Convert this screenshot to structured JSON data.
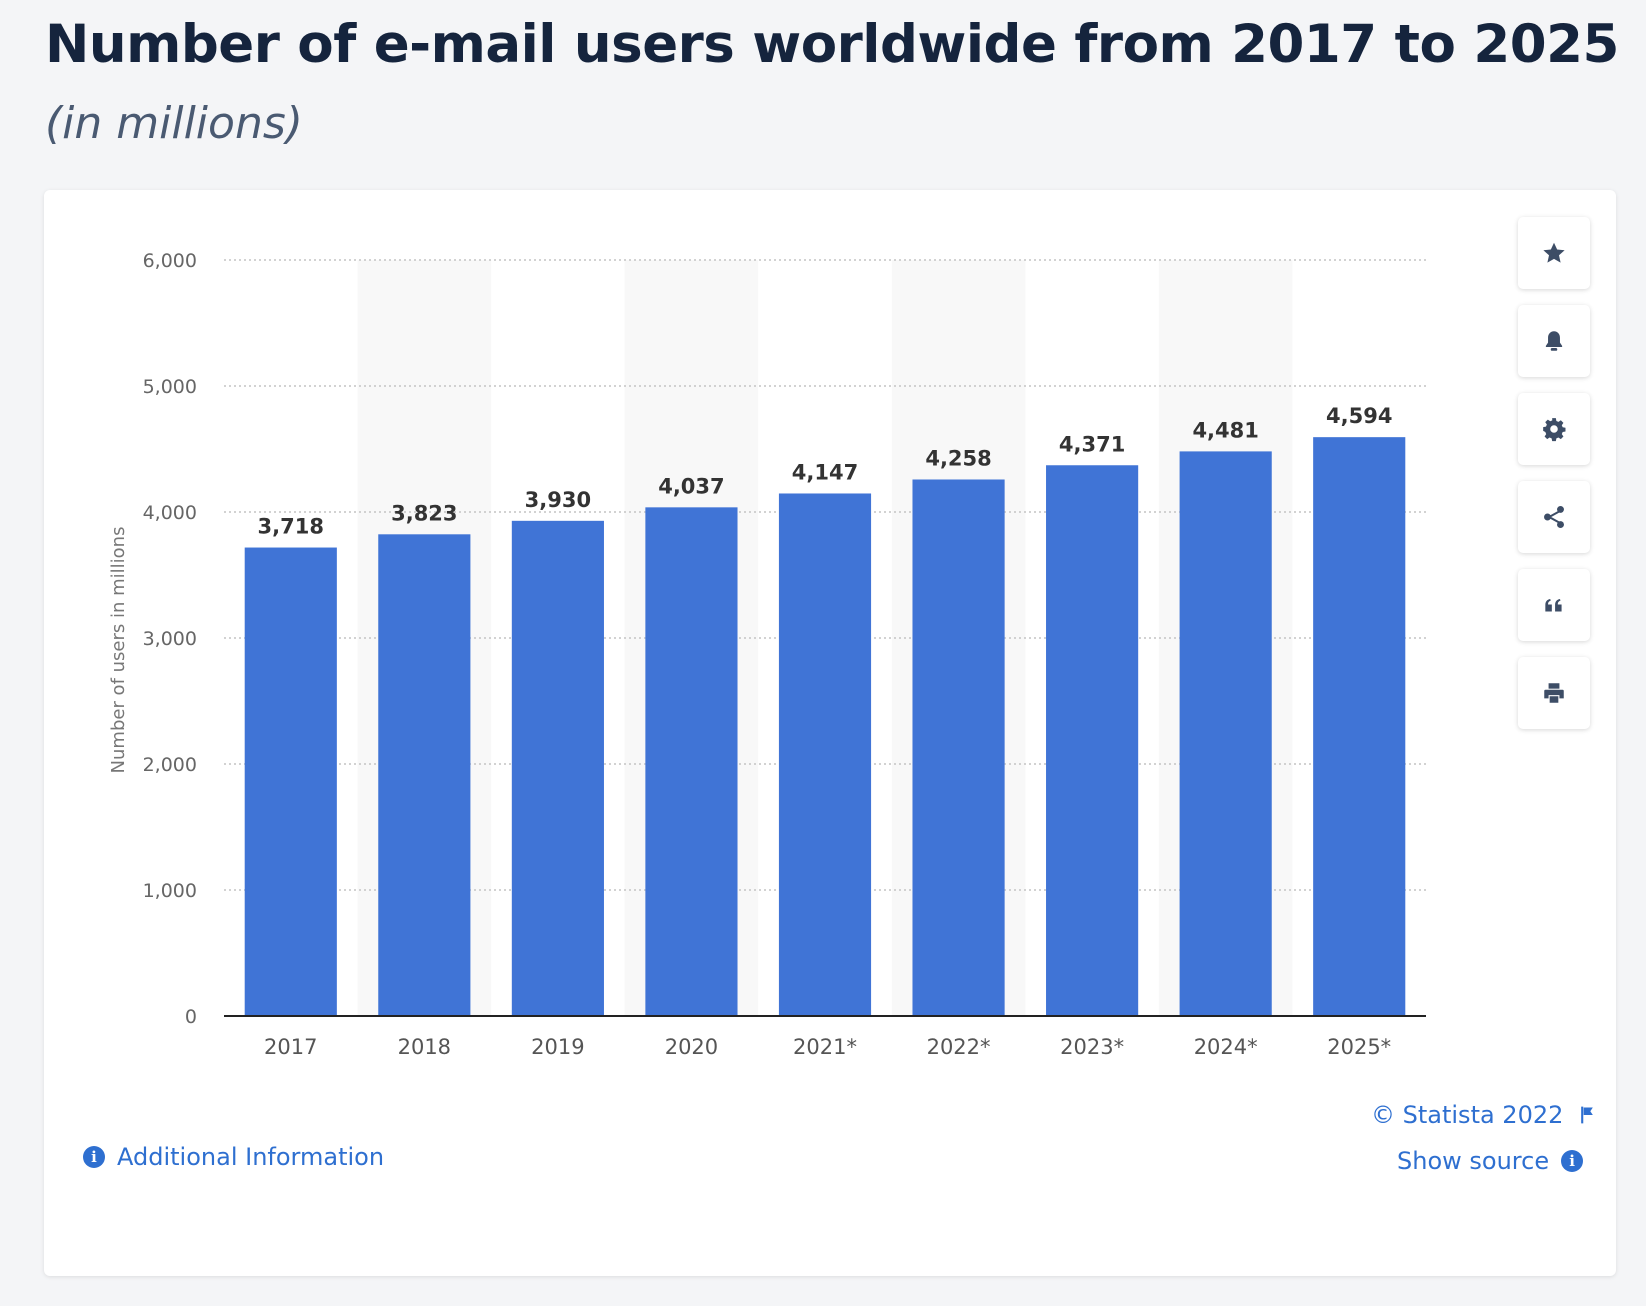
{
  "header": {
    "title": "Number of e-mail users worldwide from 2017 to 2025",
    "subtitle": "(in millions)"
  },
  "toolbar": {
    "buttons": [
      "star-icon",
      "bell-icon",
      "gear-icon",
      "share-icon",
      "quote-icon",
      "print-icon"
    ]
  },
  "footer": {
    "copyright": "© Statista 2022",
    "show_source": "Show source",
    "additional_info": "Additional Information"
  },
  "colors": {
    "bar": "#4074d6",
    "band": "#f8f8f8",
    "grid": "#c4c4c4",
    "link": "#2e6fd0"
  },
  "chart_data": {
    "type": "bar",
    "categories": [
      "2017",
      "2018",
      "2019",
      "2020",
      "2021*",
      "2022*",
      "2023*",
      "2024*",
      "2025*"
    ],
    "values": [
      3718,
      3823,
      3930,
      4037,
      4147,
      4258,
      4371,
      4481,
      4594
    ],
    "value_labels": [
      "3,718",
      "3,823",
      "3,930",
      "4,037",
      "4,147",
      "4,258",
      "4,371",
      "4,481",
      "4,594"
    ],
    "ylabel": "Number of users in millions",
    "ylim": [
      0,
      6000
    ],
    "yticks": [
      0,
      1000,
      2000,
      3000,
      4000,
      5000,
      6000
    ],
    "ytick_labels": [
      "0",
      "1,000",
      "2,000",
      "3,000",
      "4,000",
      "5,000",
      "6,000"
    ],
    "grid": true,
    "legend": "none"
  }
}
